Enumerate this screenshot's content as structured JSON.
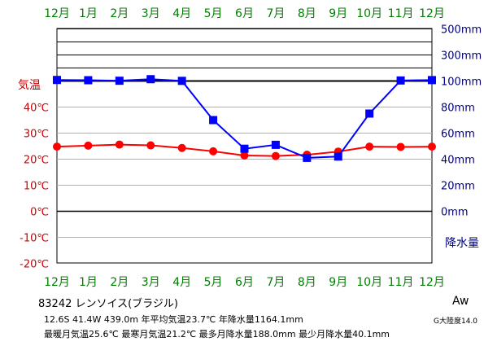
{
  "chart_data": {
    "type": "line",
    "x": [
      "12月",
      "1月",
      "2月",
      "3月",
      "4月",
      "5月",
      "6月",
      "7月",
      "8月",
      "9月",
      "10月",
      "11月",
      "12月"
    ],
    "temperature": {
      "label": "気温",
      "values": [
        24.8,
        25.2,
        25.6,
        25.3,
        24.3,
        23.0,
        21.4,
        21.2,
        21.7,
        22.9,
        24.8,
        24.7,
        24.8
      ],
      "ticks": [
        "40℃",
        "30℃",
        "20℃",
        "10℃",
        "0℃",
        "-10℃",
        "-20℃"
      ],
      "ylim": [
        -20,
        40
      ],
      "color": "#ff0000"
    },
    "precipitation": {
      "label": "降水量",
      "values": [
        108,
        106,
        102,
        114,
        101,
        70,
        48,
        51,
        41,
        42,
        75,
        104,
        107
      ],
      "ticks": [
        "500mm",
        "300mm",
        "100mm",
        "80mm",
        "60mm",
        "40mm",
        "20mm",
        "0mm"
      ],
      "color": "#0000ff"
    },
    "month_label_color": "#008000",
    "left_axis_color": "#cc0000",
    "right_axis_color": "#000080",
    "grid": true
  },
  "info": {
    "station": "83242  レンソイス(ブラジル)",
    "line1": "12.6S  41.4W  439.0m  年平均気温23.7℃  年降水量1164.1mm",
    "line2": "最暖月気温25.6℃  最寒月気温21.2℃  最多月降水量188.0mm  最少月降水量40.1mm",
    "climate_class": "Aw",
    "region": "G大陸度14.0"
  }
}
